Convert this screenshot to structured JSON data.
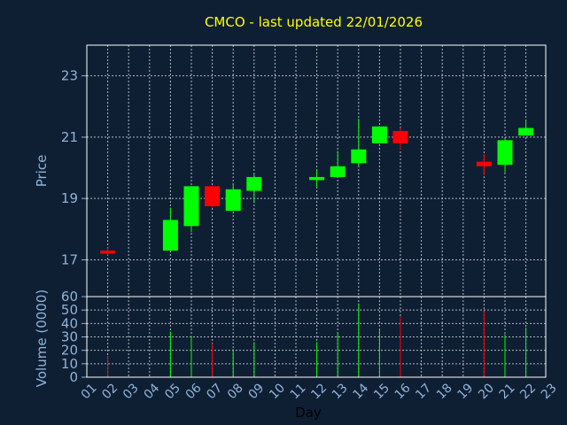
{
  "chart_data": {
    "type": "candlestick",
    "title": "CMCO - last updated 22/01/2026",
    "xlabel": "Day",
    "price_panel": {
      "ylabel": "Price",
      "ylim": [
        15.8,
        24
      ],
      "y_ticks": [
        "17",
        "19",
        "21",
        "23"
      ],
      "y_tick_values": [
        17,
        19,
        21,
        23
      ]
    },
    "volume_panel": {
      "ylabel": "Volume (0000)",
      "ylim": [
        0,
        60
      ],
      "y_ticks": [
        "0",
        "10",
        "20",
        "30",
        "40",
        "50",
        "60"
      ],
      "y_tick_values": [
        0,
        10,
        20,
        30,
        40,
        50,
        60
      ]
    },
    "x_ticks": [
      "01",
      "02",
      "03",
      "04",
      "05",
      "06",
      "07",
      "08",
      "09",
      "10",
      "11",
      "12",
      "13",
      "14",
      "15",
      "16",
      "17",
      "18",
      "19",
      "20",
      "21",
      "22",
      "23"
    ],
    "colors": {
      "up": "#00ff00",
      "down": "#ff0000",
      "background": "#0f1f33",
      "title": "#ffff00",
      "axis_text": "#8fb3d9"
    },
    "candles": [
      {
        "day": 2,
        "open": 17.3,
        "high": 17.4,
        "low": 17.15,
        "close": 17.2,
        "volume": 16
      },
      {
        "day": 5,
        "open": 17.3,
        "high": 18.7,
        "low": 17.3,
        "close": 18.3,
        "volume": 34
      },
      {
        "day": 6,
        "open": 18.1,
        "high": 19.4,
        "low": 17.9,
        "close": 19.4,
        "volume": 31
      },
      {
        "day": 7,
        "open": 19.4,
        "high": 19.4,
        "low": 18.7,
        "close": 18.75,
        "volume": 25
      },
      {
        "day": 8,
        "open": 18.6,
        "high": 19.5,
        "low": 18.6,
        "close": 19.3,
        "volume": 21
      },
      {
        "day": 9,
        "open": 19.25,
        "high": 19.8,
        "low": 18.85,
        "close": 19.7,
        "volume": 26
      },
      {
        "day": 12,
        "open": 19.6,
        "high": 19.95,
        "low": 19.35,
        "close": 19.7,
        "volume": 26
      },
      {
        "day": 13,
        "open": 19.7,
        "high": 20.55,
        "low": 19.7,
        "close": 20.05,
        "volume": 33
      },
      {
        "day": 14,
        "open": 20.15,
        "high": 21.6,
        "low": 20.05,
        "close": 20.6,
        "volume": 55
      },
      {
        "day": 15,
        "open": 20.8,
        "high": 21.35,
        "low": 20.8,
        "close": 21.35,
        "volume": 35
      },
      {
        "day": 16,
        "open": 21.2,
        "high": 21.3,
        "low": 20.6,
        "close": 20.8,
        "volume": 45
      },
      {
        "day": 20,
        "open": 20.2,
        "high": 20.45,
        "low": 19.75,
        "close": 20.05,
        "volume": 49
      },
      {
        "day": 21,
        "open": 20.1,
        "high": 20.95,
        "low": 19.85,
        "close": 20.9,
        "volume": 32
      },
      {
        "day": 22,
        "open": 21.05,
        "high": 21.55,
        "low": 21.05,
        "close": 21.3,
        "volume": 37
      }
    ]
  }
}
